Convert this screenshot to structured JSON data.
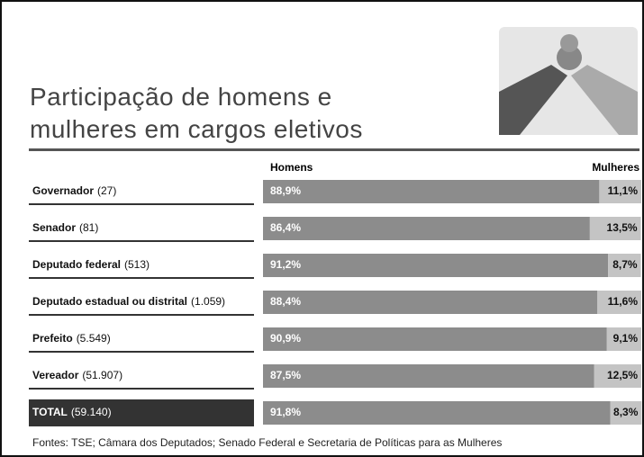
{
  "chart_data": {
    "type": "bar",
    "orientation": "horizontal",
    "stacked": true,
    "title": "Participação de homens e mulheres em cargos eletivos",
    "categories": [
      "Governador",
      "Senador",
      "Deputado federal",
      "Deputado estadual ou distrital",
      "Prefeito",
      "Vereador",
      "TOTAL"
    ],
    "category_counts": [
      "(27)",
      "(81)",
      "(513)",
      "(1.059)",
      "(5.549)",
      "(51.907)",
      "(59.140)"
    ],
    "series": [
      {
        "name": "Homens",
        "color": "#8c8c8c",
        "values": [
          88.9,
          86.4,
          91.2,
          88.4,
          90.9,
          87.5,
          91.8
        ],
        "value_labels": [
          "88,9%",
          "86,4%",
          "91,2%",
          "88,4%",
          "90,9%",
          "87,5%",
          "91,8%"
        ]
      },
      {
        "name": "Mulheres",
        "color": "#c4c4c4",
        "values": [
          11.1,
          13.5,
          8.7,
          11.6,
          9.1,
          12.5,
          8.3
        ],
        "value_labels": [
          "11,1%",
          "13,5%",
          "8,7%",
          "11,6%",
          "9,1%",
          "12,5%",
          "8,3%"
        ]
      }
    ],
    "xlim": [
      0,
      100
    ],
    "source": "Fontes: TSE; Câmara dos Deputados; Senado Federal e Secretaria de Políticas para as Mulheres"
  }
}
